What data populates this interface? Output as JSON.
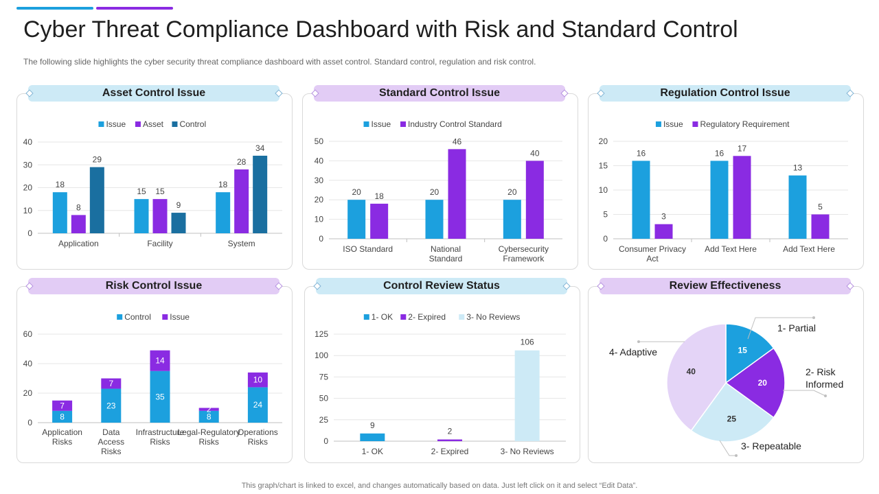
{
  "title": "Cyber Threat Compliance Dashboard with Risk and Standard Control",
  "subtitle": "The following  slide highlights the cyber security threat compliance dashboard  with asset control. Standard  control, regulation  and risk control.",
  "footer": "This graph/chart is linked to excel,  and changes automatically based on data. Just left click on it and select “Edit Data”.",
  "colors": {
    "blue": "#1ca0de",
    "purple": "#8a2be2",
    "dark_blue": "#1a6fa0",
    "light_blue": "#cdeaf6",
    "lavender": "#e2ccf5",
    "light_purple": "#e4d4f7"
  },
  "panels": {
    "asset": {
      "title": "Asset Control Issue"
    },
    "standard": {
      "title": "Standard Control Issue"
    },
    "regulation": {
      "title": "Regulation Control Issue"
    },
    "risk": {
      "title": "Risk Control Issue"
    },
    "review": {
      "title": "Control Review Status"
    },
    "effectiveness": {
      "title": "Review Effectiveness"
    }
  },
  "chart_data": [
    {
      "id": "asset",
      "type": "bar",
      "title": "Asset Control Issue",
      "categories": [
        "Application",
        "Facility",
        "System"
      ],
      "series": [
        {
          "name": "Issue",
          "values": [
            18,
            15,
            18
          ],
          "color": "#1ca0de"
        },
        {
          "name": "Asset",
          "values": [
            8,
            15,
            28
          ],
          "color": "#8a2be2"
        },
        {
          "name": "Control",
          "values": [
            29,
            9,
            34
          ],
          "color": "#1a6fa0"
        }
      ],
      "ylim": [
        0,
        40
      ],
      "yticks": [
        0,
        10,
        20,
        30,
        40
      ]
    },
    {
      "id": "standard",
      "type": "bar",
      "title": "Standard Control Issue",
      "categories": [
        "ISO Standard",
        "National Standard",
        "Cybersecurity Framework"
      ],
      "series": [
        {
          "name": "Issue",
          "values": [
            20,
            20,
            20
          ],
          "color": "#1ca0de"
        },
        {
          "name": "Industry Control Standard",
          "values": [
            18,
            46,
            40
          ],
          "color": "#8a2be2"
        }
      ],
      "ylim": [
        0,
        50
      ],
      "yticks": [
        0,
        10,
        20,
        30,
        40,
        50
      ]
    },
    {
      "id": "regulation",
      "type": "bar",
      "title": "Regulation Control Issue",
      "categories": [
        "Consumer Privacy Act",
        "Add Text Here",
        "Add Text Here"
      ],
      "series": [
        {
          "name": "Issue",
          "values": [
            16,
            16,
            13
          ],
          "color": "#1ca0de"
        },
        {
          "name": "Regulatory Requirement",
          "values": [
            3,
            17,
            5
          ],
          "color": "#8a2be2"
        }
      ],
      "ylim": [
        0,
        20
      ],
      "yticks": [
        0,
        5,
        10,
        15,
        20
      ]
    },
    {
      "id": "risk",
      "type": "bar",
      "stacked": true,
      "title": "Risk Control Issue",
      "categories": [
        "Application Risks",
        "Data Access Risks",
        "Infrastructure Risks",
        "Legal-Regulatory Risks",
        "Operations Risks"
      ],
      "series": [
        {
          "name": "Control",
          "values": [
            8,
            23,
            35,
            8,
            24
          ],
          "color": "#1ca0de"
        },
        {
          "name": "Issue",
          "values": [
            7,
            7,
            14,
            2,
            10
          ],
          "color": "#8a2be2"
        }
      ],
      "ylim": [
        0,
        60
      ],
      "yticks": [
        0,
        20,
        40,
        60
      ]
    },
    {
      "id": "review",
      "type": "bar",
      "colored_by_point": true,
      "title": "Control Review Status",
      "categories": [
        "1- OK",
        "2- Expired",
        "3- No Reviews"
      ],
      "legend": [
        "1- OK",
        "2- Expired",
        "3- No Reviews"
      ],
      "values": [
        9,
        2,
        106
      ],
      "colors": [
        "#1ca0de",
        "#8a2be2",
        "#cdeaf6"
      ],
      "ylim": [
        0,
        125
      ],
      "yticks": [
        0,
        25,
        50,
        75,
        100,
        125
      ]
    },
    {
      "id": "effectiveness",
      "type": "pie",
      "title": "Review Effectiveness",
      "slices": [
        {
          "label": "1- Partial",
          "value": 15,
          "color": "#1ca0de"
        },
        {
          "label": "2- Risk Informed",
          "value": 20,
          "color": "#8a2be2"
        },
        {
          "label": "3- Repeatable",
          "value": 25,
          "color": "#cdeaf6"
        },
        {
          "label": "4- Adaptive",
          "value": 40,
          "color": "#e4d4f7"
        }
      ]
    }
  ]
}
